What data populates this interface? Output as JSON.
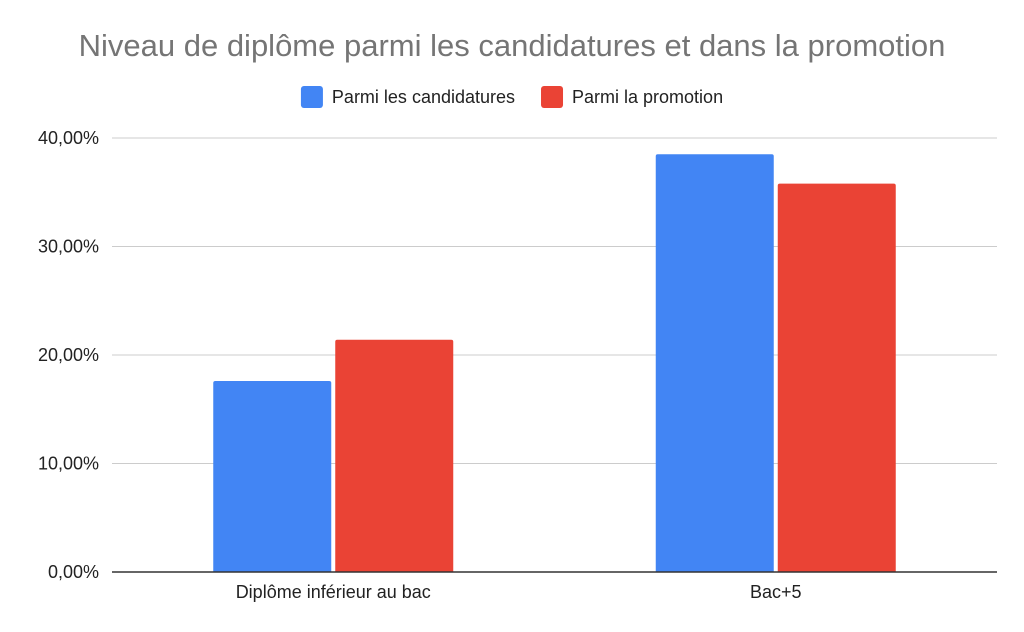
{
  "chart_data": {
    "type": "bar",
    "title": "Niveau de diplôme parmi les candidatures et dans la promotion",
    "xlabel": "",
    "ylabel": "",
    "categories": [
      "Diplôme inférieur au bac",
      "Bac+5"
    ],
    "series": [
      {
        "name": "Parmi les candidatures",
        "color": "#4285f4",
        "values": [
          17.6,
          38.5
        ]
      },
      {
        "name": "Parmi la promotion",
        "color": "#ea4335",
        "values": [
          21.4,
          35.8
        ]
      }
    ],
    "ylim": [
      0,
      40
    ],
    "yticks": [
      0,
      10,
      20,
      30,
      40
    ],
    "ytick_labels": [
      "0,00%",
      "10,00%",
      "20,00%",
      "30,00%",
      "40,00%"
    ],
    "grid": true,
    "legend_position": "top-center"
  }
}
